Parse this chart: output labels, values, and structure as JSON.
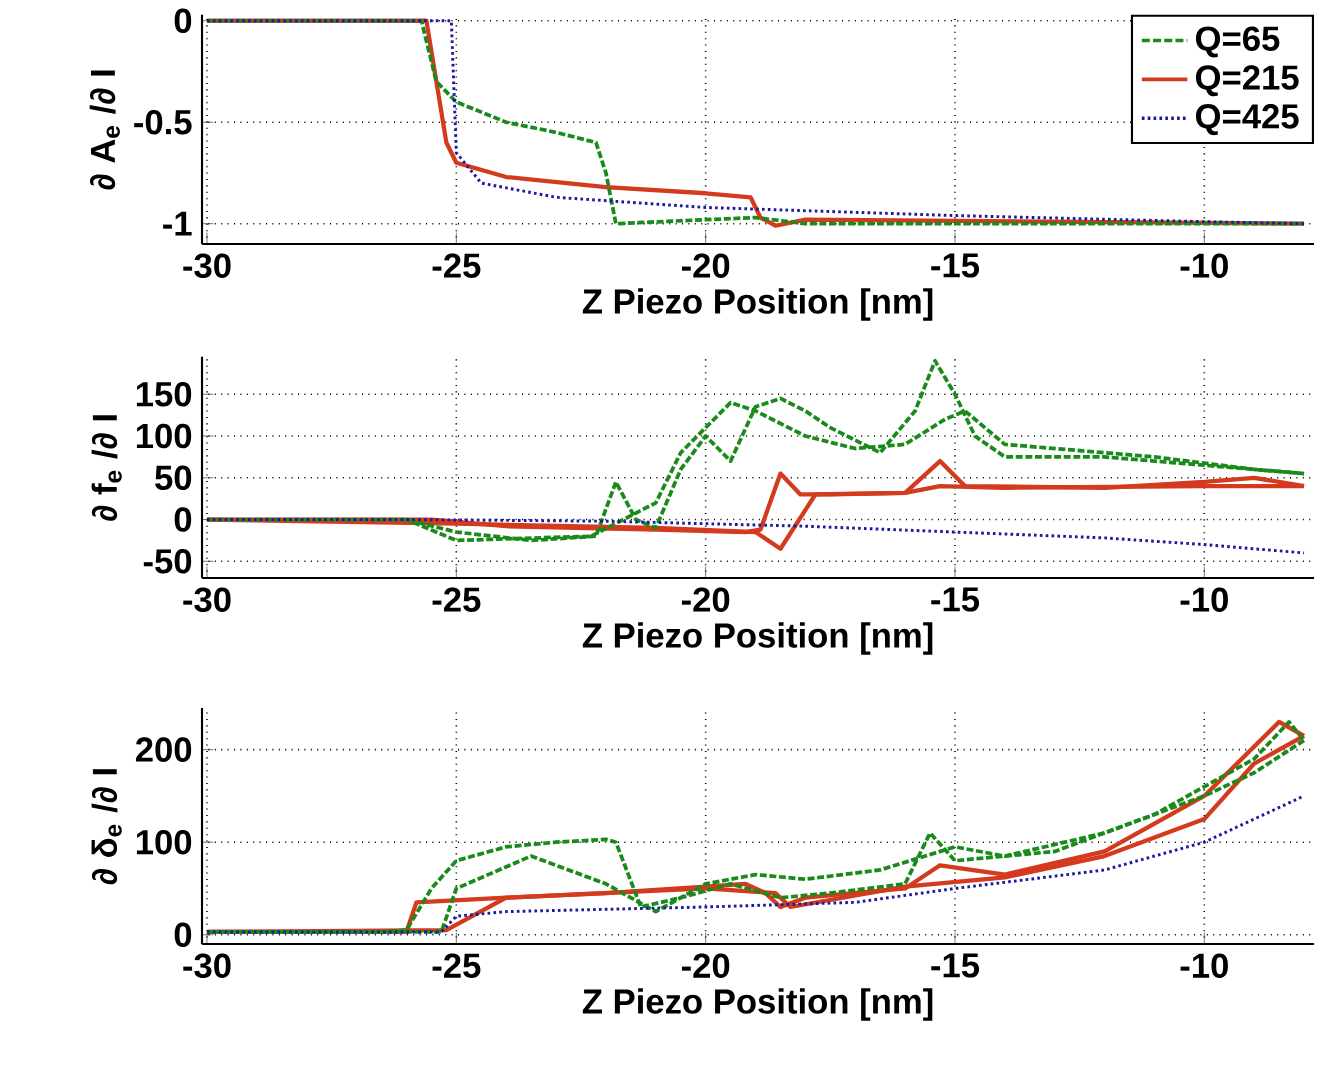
{
  "chart_data": [
    {
      "type": "line",
      "xlabel": "Z Piezo Position [nm]",
      "ylabel": "∂ A$_{e}$ /∂ I",
      "xlim": [
        -30.1,
        -7.8
      ],
      "ylim": [
        -1.1,
        0.03
      ],
      "xticks": [
        -30,
        -25,
        -20,
        -15,
        -10
      ],
      "yticks": [
        -1,
        -0.5,
        0
      ],
      "grid": true,
      "legend": "top right",
      "series": [
        {
          "name": "Q=65",
          "color": "#1a8a1a",
          "line_style": "dashed",
          "x": [
            -30,
            -25.7,
            -25.4,
            -25,
            -24,
            -23,
            -22.2,
            -22,
            -21.8,
            -20,
            -19,
            -18,
            -8
          ],
          "values": [
            0,
            0,
            -0.3,
            -0.4,
            -0.5,
            -0.55,
            -0.6,
            -0.75,
            -1,
            -0.98,
            -0.97,
            -1,
            -1
          ]
        },
        {
          "name": "Q=215",
          "color": "#d43a1e",
          "line_style": "solid",
          "x": [
            -30,
            -25.6,
            -25.4,
            -25.2,
            -25,
            -24,
            -22,
            -20,
            -19.1,
            -18.9,
            -18.6,
            -18,
            -8
          ],
          "values": [
            0,
            0,
            -0.3,
            -0.6,
            -0.7,
            -0.77,
            -0.82,
            -0.85,
            -0.87,
            -0.97,
            -1.01,
            -0.98,
            -1
          ]
        },
        {
          "name": "Q=425",
          "color": "#1a1a9e",
          "line_style": "dotted",
          "x": [
            -30,
            -25.1,
            -25,
            -24.5,
            -23,
            -20,
            -15,
            -10,
            -8
          ],
          "values": [
            0,
            0,
            -0.65,
            -0.8,
            -0.87,
            -0.92,
            -0.96,
            -0.99,
            -1
          ]
        }
      ]
    },
    {
      "type": "line",
      "xlabel": "Z Piezo Position [nm]",
      "ylabel": "∂ f$_{e}$ /∂ I",
      "xlim": [
        -30.1,
        -7.8
      ],
      "ylim": [
        -70,
        195
      ],
      "xticks": [
        -30,
        -25,
        -20,
        -15,
        -10
      ],
      "yticks": [
        -50,
        0,
        50,
        100,
        150
      ],
      "grid": true,
      "series": [
        {
          "color": "#1a8a1a",
          "line_style": "dashed",
          "x": [
            -30,
            -26,
            -25,
            -23.5,
            -22.2,
            -21.8,
            -21.4,
            -21,
            -20.5,
            -20,
            -19.5,
            -19,
            -18.5,
            -18,
            -17.5,
            -16.5,
            -15.8,
            -15.4,
            -15,
            -14.6,
            -14,
            -12,
            -10,
            -8
          ],
          "values": [
            0,
            0,
            -15,
            -25,
            -20,
            45,
            0,
            -10,
            60,
            100,
            70,
            135,
            145,
            130,
            110,
            80,
            130,
            190,
            150,
            100,
            75,
            75,
            65,
            55
          ]
        },
        {
          "color": "#1a8a1a",
          "line_style": "dashed",
          "x": [
            -8,
            -9,
            -11,
            -14,
            -14.8,
            -15.2,
            -16,
            -17,
            -18,
            -19,
            -19.5,
            -20,
            -20.5,
            -21,
            -22.3,
            -25,
            -26
          ],
          "values": [
            55,
            60,
            75,
            90,
            130,
            120,
            90,
            85,
            100,
            130,
            140,
            110,
            80,
            20,
            -20,
            -25,
            0
          ]
        },
        {
          "color": "#d43a1e",
          "line_style": "solid",
          "x": [
            -30,
            -25.5,
            -24,
            -21,
            -19.2,
            -18.9,
            -18.5,
            -18.1,
            -17.5,
            -16,
            -15.3,
            -14.8,
            -12,
            -10,
            -9,
            -8
          ],
          "values": [
            0,
            0,
            -8,
            -12,
            -15,
            -12,
            55,
            30,
            30,
            32,
            70,
            40,
            38,
            45,
            50,
            40
          ]
        },
        {
          "color": "#d43a1e",
          "line_style": "solid",
          "x": [
            -8,
            -10,
            -14,
            -15.3,
            -16,
            -17.8,
            -18.5,
            -19,
            -21,
            -25,
            -30
          ],
          "values": [
            40,
            40,
            38,
            40,
            32,
            30,
            -35,
            -15,
            -10,
            -5,
            0
          ]
        },
        {
          "color": "#1a1a9e",
          "line_style": "dotted",
          "x": [
            -30,
            -26,
            -22,
            -18,
            -15,
            -12,
            -10,
            -8
          ],
          "values": [
            0,
            0,
            -2,
            -8,
            -15,
            -22,
            -30,
            -40
          ]
        }
      ]
    },
    {
      "type": "line",
      "xlabel": "Z Piezo Position [nm]",
      "ylabel": "∂ δ$_{e}$ /∂ I",
      "xlim": [
        -30.1,
        -7.8
      ],
      "ylim": [
        -10,
        245
      ],
      "xticks": [
        -30,
        -25,
        -20,
        -15,
        -10
      ],
      "yticks": [
        0,
        100,
        200
      ],
      "grid": true,
      "series": [
        {
          "color": "#1a8a1a",
          "line_style": "dashed",
          "x": [
            -30,
            -26.5,
            -26,
            -25.5,
            -25,
            -24,
            -23,
            -22,
            -21.8,
            -21.3,
            -20.5,
            -19.5,
            -18.5,
            -17.5,
            -16,
            -15.5,
            -15,
            -13,
            -11,
            -9,
            -8.3,
            -8
          ],
          "values": [
            3,
            3,
            5,
            50,
            80,
            95,
            100,
            103,
            100,
            30,
            40,
            55,
            40,
            45,
            55,
            110,
            80,
            90,
            130,
            190,
            230,
            210
          ]
        },
        {
          "color": "#1a8a1a",
          "line_style": "dashed",
          "x": [
            -8,
            -9,
            -10,
            -12,
            -14,
            -15,
            -16.5,
            -18,
            -19,
            -20,
            -21,
            -22,
            -23.5,
            -25,
            -25.3,
            -30
          ],
          "values": [
            210,
            175,
            150,
            110,
            85,
            95,
            70,
            60,
            65,
            55,
            25,
            55,
            85,
            50,
            3,
            3
          ]
        },
        {
          "color": "#d43a1e",
          "line_style": "solid",
          "x": [
            -30,
            -26,
            -25.8,
            -24,
            -22,
            -20,
            -19.2,
            -18.8,
            -18.5,
            -18,
            -16,
            -15.3,
            -14,
            -12,
            -10,
            -8.5,
            -8
          ],
          "values": [
            3,
            3,
            35,
            40,
            45,
            52,
            55,
            45,
            30,
            40,
            50,
            75,
            65,
            90,
            150,
            230,
            215
          ]
        },
        {
          "color": "#d43a1e",
          "line_style": "solid",
          "x": [
            -8,
            -9,
            -10,
            -12,
            -14,
            -16,
            -18.3,
            -18.6,
            -20,
            -24,
            -25.2,
            -30
          ],
          "values": [
            215,
            185,
            125,
            85,
            62,
            52,
            30,
            45,
            50,
            40,
            5,
            3
          ]
        },
        {
          "color": "#1a1a9e",
          "line_style": "dotted",
          "x": [
            -30,
            -25.3,
            -25,
            -24,
            -20,
            -17,
            -15,
            -12,
            -10,
            -8
          ],
          "values": [
            3,
            3,
            20,
            25,
            30,
            35,
            50,
            70,
            100,
            150
          ]
        }
      ]
    }
  ]
}
